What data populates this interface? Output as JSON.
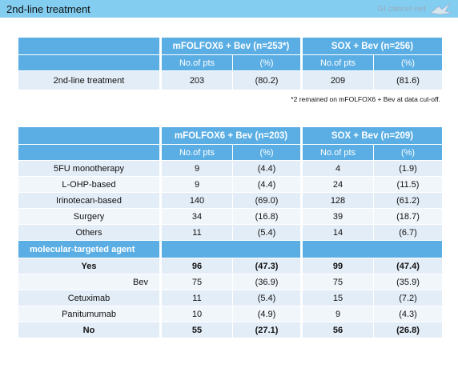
{
  "header": {
    "title": "2nd-line treatment",
    "brand": "GI cancer-net"
  },
  "table1": {
    "group_headers": [
      "mFOLFOX6 + Bev (n=253*)",
      "SOX + Bev (n=256)"
    ],
    "sub_headers": [
      "No.of pts",
      "(%)",
      "No.of pts",
      "(%)"
    ],
    "rows": [
      [
        "2nd-line treatment",
        "203",
        "(80.2)",
        "209",
        "(81.6)"
      ]
    ],
    "footnote": "*2 remained on mFOLFOX6 + Bev at data cut-off."
  },
  "table2": {
    "group_headers": [
      "mFOLFOX6 + Bev (n=203)",
      "SOX + Bev (n=209)"
    ],
    "sub_headers": [
      "No.of pts",
      "(%)",
      "No.of pts",
      "(%)"
    ],
    "rows_a": [
      [
        "5FU monotherapy",
        "9",
        "(4.4)",
        "4",
        "(1.9)"
      ],
      [
        "L-OHP-based",
        "9",
        "(4.4)",
        "24",
        "(11.5)"
      ],
      [
        "Irinotecan-based",
        "140",
        "(69.0)",
        "128",
        "(61.2)"
      ],
      [
        "Surgery",
        "34",
        "(16.8)",
        "39",
        "(18.7)"
      ],
      [
        "Others",
        "11",
        "(5.4)",
        "14",
        "(6.7)"
      ]
    ],
    "section": "molecular-targeted agent",
    "rows_b": [
      [
        "Yes",
        "96",
        "(47.3)",
        "99",
        "(47.4)"
      ],
      [
        "Bev",
        "75",
        "(36.9)",
        "75",
        "(35.9)"
      ],
      [
        "Cetuximab",
        "11",
        "(5.4)",
        "15",
        "(7.2)"
      ],
      [
        "Panitumumab",
        "10",
        "(4.9)",
        "9",
        "(4.3)"
      ],
      [
        "No",
        "55",
        "(27.1)",
        "56",
        "(26.8)"
      ]
    ]
  }
}
